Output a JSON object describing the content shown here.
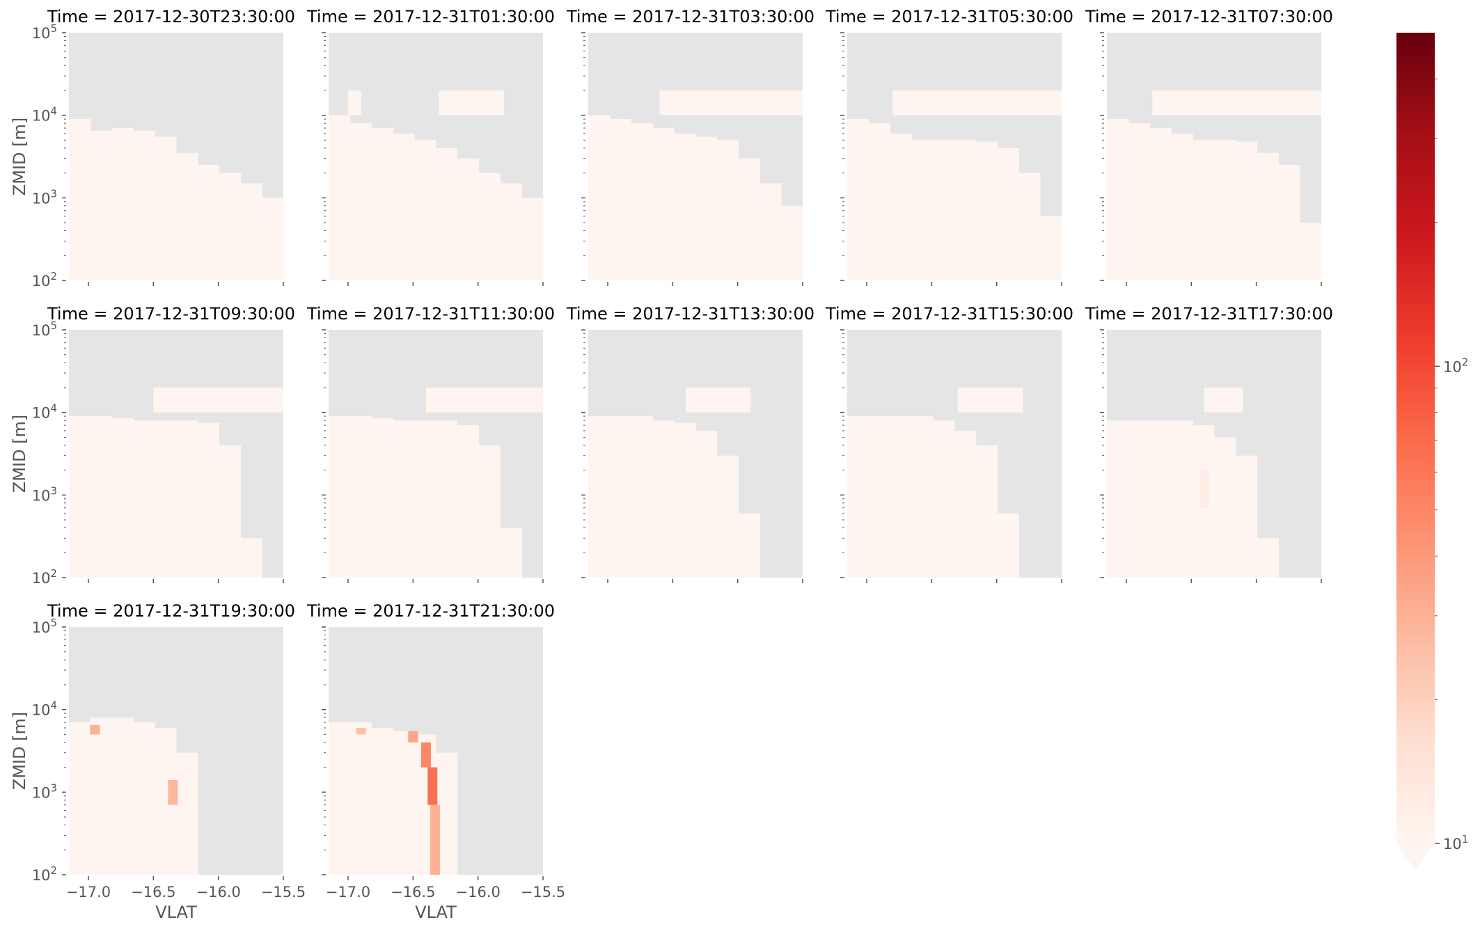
{
  "chart_data": {
    "type": "heatmap",
    "layout": "faceted",
    "facet_label_prefix": "Time = ",
    "panels": [
      {
        "time": "2017-12-30T23:30:00",
        "cloud_top_m": [
          9000,
          6500,
          7000,
          6500,
          5500,
          3500,
          2500,
          2000,
          1500,
          1000
        ],
        "thin_layer": [],
        "hotspots": []
      },
      {
        "time": "2017-12-31T01:30:00",
        "cloud_top_m": [
          10000,
          8000,
          7000,
          6000,
          5000,
          4000,
          3000,
          2000,
          1500,
          1000
        ],
        "thin_layer": [
          [
            -17.0,
            -16.9
          ],
          [
            -16.3,
            -15.8
          ]
        ],
        "hotspots": []
      },
      {
        "time": "2017-12-31T03:30:00",
        "cloud_top_m": [
          10000,
          9000,
          8000,
          7000,
          6000,
          5500,
          5000,
          3000,
          1500,
          800
        ],
        "thin_layer": [
          [
            -16.6,
            -15.5
          ]
        ],
        "hotspots": []
      },
      {
        "time": "2017-12-31T05:30:00",
        "cloud_top_m": [
          9000,
          8000,
          6000,
          5000,
          5000,
          5000,
          4800,
          4000,
          2000,
          600
        ],
        "thin_layer": [
          [
            -16.8,
            -15.5
          ]
        ],
        "hotspots": []
      },
      {
        "time": "2017-12-31T07:30:00",
        "cloud_top_m": [
          9000,
          8000,
          7000,
          6000,
          5000,
          5000,
          4800,
          3500,
          2500,
          500
        ],
        "thin_layer": [
          [
            -16.8,
            -15.5
          ]
        ],
        "hotspots": []
      },
      {
        "time": "2017-12-31T09:30:00",
        "cloud_top_m": [
          9000,
          9000,
          8500,
          8000,
          8000,
          8000,
          7500,
          4000,
          300,
          100
        ],
        "thin_layer": [
          [
            -16.5,
            -15.5
          ]
        ],
        "hotspots": []
      },
      {
        "time": "2017-12-31T11:30:00",
        "cloud_top_m": [
          9000,
          9000,
          8500,
          8000,
          8000,
          8000,
          7000,
          4000,
          400,
          100
        ],
        "thin_layer": [
          [
            -16.4,
            -15.5
          ]
        ],
        "hotspots": []
      },
      {
        "time": "2017-12-31T13:30:00",
        "cloud_top_m": [
          9000,
          9000,
          9000,
          8000,
          7500,
          6000,
          3000,
          600,
          100,
          100
        ],
        "thin_layer": [
          [
            -16.4,
            -15.9
          ]
        ],
        "hotspots": []
      },
      {
        "time": "2017-12-31T15:30:00",
        "cloud_top_m": [
          9000,
          9000,
          9000,
          9000,
          8000,
          6000,
          4000,
          600,
          100,
          100
        ],
        "thin_layer": [
          [
            -16.3,
            -15.8
          ]
        ],
        "hotspots": []
      },
      {
        "time": "2017-12-31T17:30:00",
        "cloud_top_m": [
          8000,
          8000,
          8000,
          8000,
          7000,
          5000,
          3000,
          300,
          100,
          100
        ],
        "thin_layer": [
          [
            -16.4,
            -16.1
          ]
        ],
        "hotspots": [
          {
            "x": -16.4,
            "y0": 700,
            "y1": 2000,
            "value": 12
          }
        ]
      },
      {
        "time": "2017-12-31T19:30:00",
        "cloud_top_m": [
          7000,
          8000,
          8000,
          7000,
          6000,
          3000,
          100,
          100,
          100,
          100
        ],
        "thin_layer": [],
        "hotspots": [
          {
            "x": -16.95,
            "y0": 5000,
            "y1": 6500,
            "value": 30
          },
          {
            "x": -16.35,
            "y0": 700,
            "y1": 1400,
            "value": 28
          }
        ]
      },
      {
        "time": "2017-12-31T21:30:00",
        "cloud_top_m": [
          7000,
          7000,
          6000,
          5500,
          5000,
          3000,
          100,
          100,
          100,
          100
        ],
        "thin_layer": [],
        "hotspots": [
          {
            "x": -16.9,
            "y0": 5000,
            "y1": 6000,
            "value": 25
          },
          {
            "x": -16.5,
            "y0": 4000,
            "y1": 5500,
            "value": 35
          },
          {
            "x": -16.4,
            "y0": 2000,
            "y1": 4000,
            "value": 50
          },
          {
            "x": -16.35,
            "y0": 700,
            "y1": 2000,
            "value": 65
          },
          {
            "x": -16.33,
            "y0": 100,
            "y1": 700,
            "value": 30
          }
        ]
      }
    ],
    "xlim": [
      -17.15,
      -15.5
    ],
    "x_ticks": [
      -17.0,
      -16.5,
      -16.0,
      -15.5
    ],
    "x_tick_labels": [
      "−17.0",
      "−16.5",
      "−16.0",
      "−15.5"
    ],
    "xlabel": "VLAT",
    "ylabel": "ZMID [m]",
    "yscale": "log",
    "ylim": [
      100,
      100000
    ],
    "y_tick_labels": [
      [
        "10",
        "2"
      ],
      [
        "10",
        "3"
      ],
      [
        "10",
        "4"
      ],
      [
        "10",
        "5"
      ]
    ],
    "colorbar": {
      "cmap": "Reds",
      "scale": "log",
      "range": [
        10,
        500
      ],
      "extend": "min",
      "tick_labels": [
        [
          "10",
          "1"
        ],
        [
          "10",
          "2"
        ]
      ]
    },
    "colors": {
      "no_data": "#e5e5e5",
      "low_value": "#fff5f0",
      "cmap_stops": [
        "#fff5f0",
        "#fee0d2",
        "#fcbba1",
        "#fc9272",
        "#fb6a4a",
        "#ef3b2c",
        "#cb181d",
        "#a50f15",
        "#67000d"
      ],
      "tick_color": "#555555"
    }
  }
}
